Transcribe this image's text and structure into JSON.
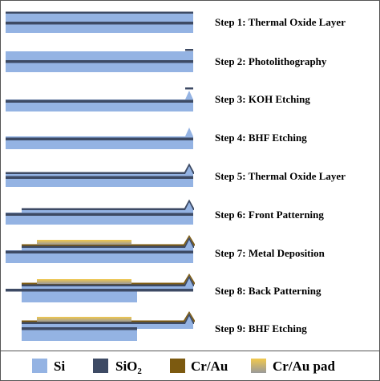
{
  "colors": {
    "si": "#94b3e3",
    "sio2": "#3d4a64",
    "crau": "#7c5a10",
    "pad_top": "#f2c94c",
    "pad_bottom": "#9a9a9a",
    "frame": "#555555"
  },
  "steps": [
    {
      "label": "Step 1: Thermal Oxide Layer"
    },
    {
      "label": "Step 2: Photolithography"
    },
    {
      "label": "Step 3: KOH Etching"
    },
    {
      "label": "Step 4: BHF Etching"
    },
    {
      "label": "Step 5: Thermal Oxide Layer"
    },
    {
      "label": "Step 6: Front Patterning"
    },
    {
      "label": "Step 7: Metal Deposition"
    },
    {
      "label": "Step 8: Back Patterning"
    },
    {
      "label": "Step 9: BHF Etching"
    }
  ],
  "legend": [
    {
      "key": "si",
      "label": "Si",
      "sub": ""
    },
    {
      "key": "sio2",
      "label": "SiO",
      "sub": "2"
    },
    {
      "key": "crau",
      "label": "Cr/Au",
      "sub": ""
    },
    {
      "key": "pad",
      "label": "Cr/Au pad",
      "sub": ""
    }
  ]
}
